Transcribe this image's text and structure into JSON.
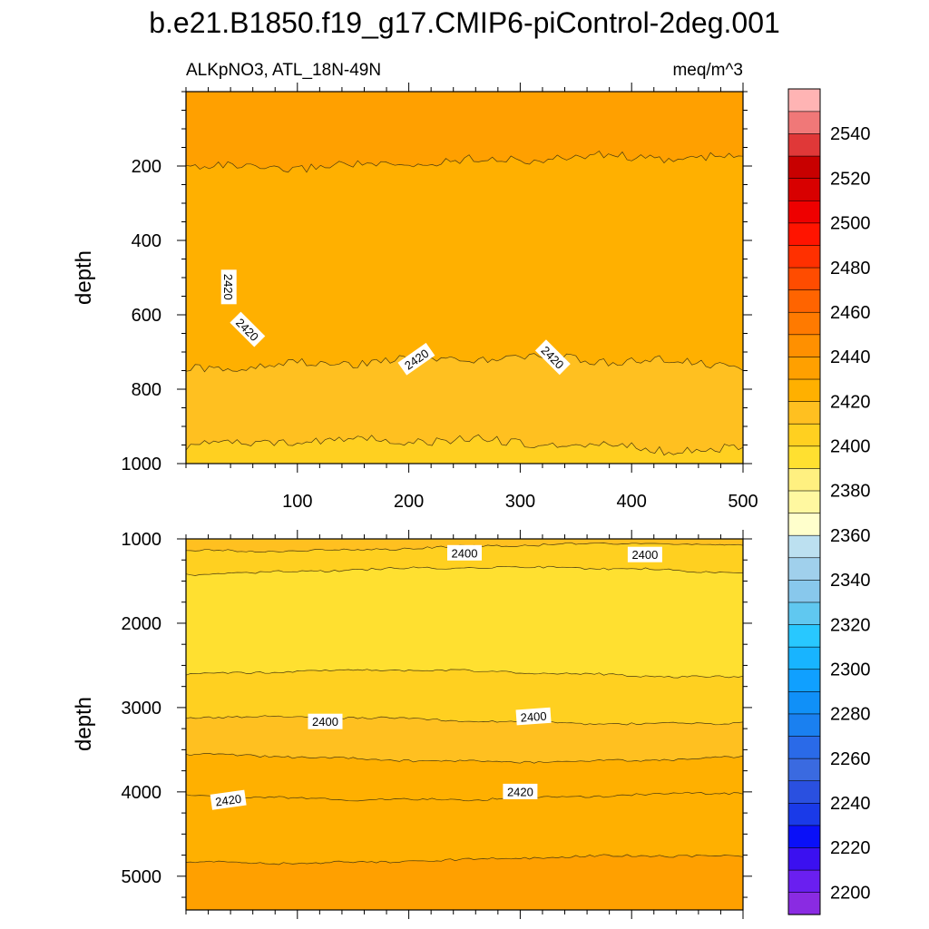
{
  "title": "b.e21.B1850.f19_g17.CMIP6-piControl-2deg.001",
  "chart_data": {
    "type": "heatmap",
    "variable": "ALKpNO3, ATL_18N-49N",
    "units": "meq/m^3",
    "panels": [
      {
        "id": "upper",
        "ylabel": "depth",
        "xlim": [
          0,
          500
        ],
        "ylim": [
          0,
          1000
        ],
        "y_inverted": true,
        "x_ticks": [
          "100",
          "200",
          "300",
          "400",
          "500"
        ],
        "y_ticks": [
          "200",
          "400",
          "600",
          "800",
          "1000"
        ],
        "bands": [
          {
            "top": 0,
            "bottom": 190,
            "value": 2430
          },
          {
            "top": 190,
            "bottom": 730,
            "value": 2420
          },
          {
            "top": 730,
            "bottom": 950,
            "value": 2410
          },
          {
            "top": 950,
            "bottom": 1000,
            "value": 2400
          }
        ],
        "contour_labels": [
          {
            "text": "2420",
            "x": 38,
            "depth": 525,
            "angle": 90
          },
          {
            "text": "2420",
            "x": 55,
            "depth": 640,
            "angle": 45
          },
          {
            "text": "2420",
            "x": 207,
            "depth": 720,
            "angle": -35
          },
          {
            "text": "2420",
            "x": 329,
            "depth": 715,
            "angle": 45
          }
        ]
      },
      {
        "id": "lower",
        "ylabel": "depth",
        "xlim": [
          0,
          500
        ],
        "ylim": [
          1000,
          5400
        ],
        "y_inverted": true,
        "x_ticks": [],
        "y_ticks": [
          "1000",
          "2000",
          "3000",
          "4000",
          "5000"
        ],
        "bands": [
          {
            "top": 1000,
            "bottom": 1100,
            "value": 2410
          },
          {
            "top": 1100,
            "bottom": 1380,
            "value": 2400
          },
          {
            "top": 1380,
            "bottom": 2600,
            "value": 2390
          },
          {
            "top": 2600,
            "bottom": 3150,
            "value": 2400
          },
          {
            "top": 3150,
            "bottom": 3600,
            "value": 2410
          },
          {
            "top": 3600,
            "bottom": 4050,
            "value": 2420
          },
          {
            "top": 4050,
            "bottom": 4800,
            "value": 2425
          },
          {
            "top": 4800,
            "bottom": 5400,
            "value": 2430
          }
        ],
        "contour_labels": [
          {
            "text": "2400",
            "x": 250,
            "depth": 1170,
            "angle": 0
          },
          {
            "text": "2400",
            "x": 412,
            "depth": 1190,
            "angle": 0
          },
          {
            "text": "2400",
            "x": 125,
            "depth": 3170,
            "angle": 0
          },
          {
            "text": "2400",
            "x": 312,
            "depth": 3110,
            "angle": -4
          },
          {
            "text": "2420",
            "x": 38,
            "depth": 4100,
            "angle": -8
          },
          {
            "text": "2420",
            "x": 300,
            "depth": 4000,
            "angle": 0
          }
        ]
      }
    ],
    "colorbar": {
      "levels": [
        2200,
        2210,
        2220,
        2230,
        2240,
        2250,
        2260,
        2270,
        2280,
        2290,
        2300,
        2310,
        2320,
        2330,
        2340,
        2350,
        2360,
        2370,
        2380,
        2390,
        2400,
        2410,
        2420,
        2430,
        2440,
        2450,
        2460,
        2470,
        2480,
        2490,
        2500,
        2510,
        2520,
        2530,
        2540,
        2550
      ],
      "tick_labels": [
        "2200",
        "2220",
        "2240",
        "2260",
        "2280",
        "2300",
        "2320",
        "2340",
        "2360",
        "2380",
        "2400",
        "2420",
        "2440",
        "2460",
        "2480",
        "2500",
        "2520",
        "2540"
      ],
      "colors_bottom_to_top": [
        "#8a2be2",
        "#6a1ff0",
        "#3b10f0",
        "#0a10f8",
        "#1a3ae8",
        "#2a50e0",
        "#3a6ae0",
        "#2a6ae8",
        "#1a80f0",
        "#1090f8",
        "#10a0ff",
        "#18b4ff",
        "#28c8ff",
        "#60c8f0",
        "#88c8ec",
        "#a0d0ec",
        "#bce0f0",
        "#ffffcc",
        "#fff8a0",
        "#fff080",
        "#ffe030",
        "#ffd020",
        "#ffc020",
        "#ffb000",
        "#ffa000",
        "#ff9000",
        "#ff7a00",
        "#ff6400",
        "#ff4c00",
        "#ff3000",
        "#ff1400",
        "#ee0000",
        "#d80000",
        "#c80000",
        "#e03838",
        "#f07878",
        "#ffb4b4"
      ]
    }
  }
}
